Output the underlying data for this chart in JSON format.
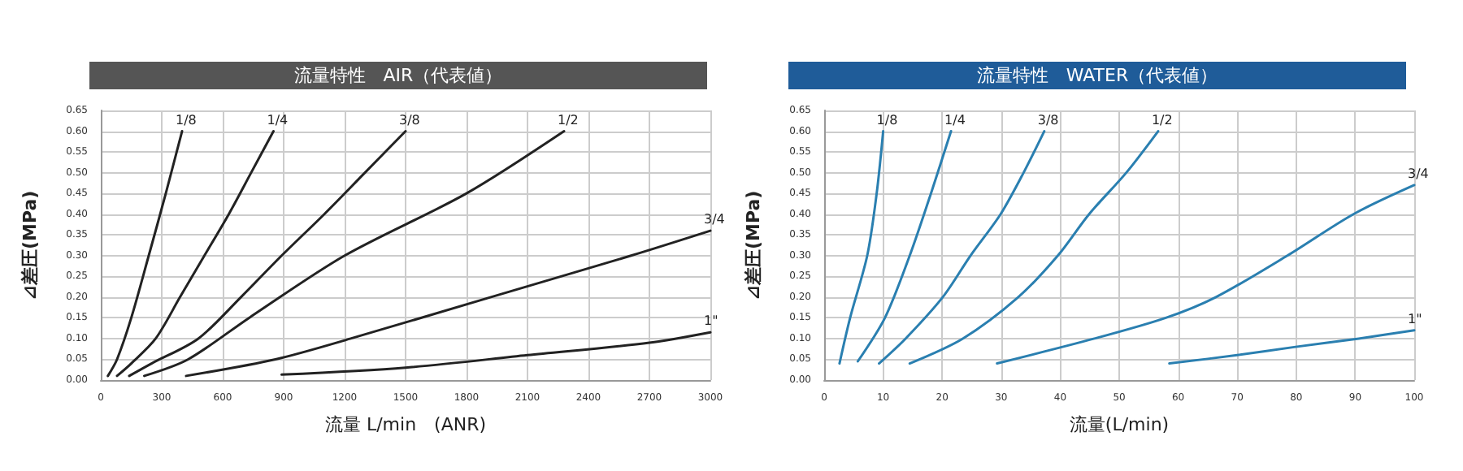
{
  "chart_data": [
    {
      "type": "line",
      "title": "流量特性　AIR（代表値）",
      "xlabel": "流量 L/min　(ANR)",
      "ylabel": "⊿差圧(MPa)",
      "xlim": [
        0,
        3000
      ],
      "xticks": [
        0,
        300,
        600,
        900,
        1200,
        1500,
        1800,
        2100,
        2400,
        2700,
        3000
      ],
      "ylim": [
        0,
        0.65
      ],
      "yticks": [
        {
          "value": 0,
          "label": "0.00"
        },
        0.05,
        {
          "value": 0.1,
          "label": "0.10"
        },
        0.15,
        {
          "value": 0.2,
          "label": "0.20"
        },
        0.25,
        {
          "value": 0.3,
          "label": "0.30"
        },
        0.35,
        {
          "value": 0.4,
          "label": "0.40"
        },
        0.45,
        {
          "value": 0.5,
          "label": "0.50"
        },
        0.55,
        {
          "value": 0.6,
          "label": "0.60"
        },
        0.65
      ],
      "grid": true,
      "legend": false,
      "marker": "none",
      "line_style": "solid",
      "series": [
        {
          "name": "1/8",
          "color": "#222222",
          "x": [
            35,
            80,
            150,
            236,
            320,
            400
          ],
          "values": [
            0.01,
            0.05,
            0.15,
            0.3,
            0.45,
            0.6
          ]
        },
        {
          "name": "1/4",
          "color": "#222222",
          "x": [
            80,
            150,
            270,
            390,
            510,
            630,
            740,
            850
          ],
          "values": [
            0.01,
            0.04,
            0.1,
            0.2,
            0.3,
            0.4,
            0.5,
            0.6
          ]
        },
        {
          "name": "3/8",
          "color": "#222222",
          "x": [
            140,
            250,
            480,
            690,
            890,
            1100,
            1300,
            1500
          ],
          "values": [
            0.01,
            0.04,
            0.1,
            0.2,
            0.3,
            0.4,
            0.5,
            0.6
          ]
        },
        {
          "name": "1/2",
          "color": "#222222",
          "x": [
            214,
            430,
            730,
            1200,
            1800,
            2280
          ],
          "values": [
            0.01,
            0.05,
            0.15,
            0.3,
            0.45,
            0.6
          ]
        },
        {
          "name": "3/4",
          "color": "#222222",
          "x": [
            420,
            860,
            1230,
            1920,
            2610,
            3000
          ],
          "values": [
            0.01,
            0.05,
            0.1,
            0.2,
            0.3,
            0.36
          ]
        },
        {
          "name": "1\"",
          "color": "#222222",
          "x": [
            890,
            1500,
            2100,
            2700,
            3000
          ],
          "values": [
            0.013,
            0.03,
            0.06,
            0.09,
            0.115
          ]
        }
      ]
    },
    {
      "type": "line",
      "title": "流量特性　WATER（代表値）",
      "xlabel": "流量(L/min)",
      "ylabel": "⊿差圧(MPa)",
      "xlim": [
        0,
        100
      ],
      "xticks": [
        0,
        10,
        20,
        30,
        40,
        50,
        60,
        70,
        80,
        90,
        100
      ],
      "ylim": [
        0,
        0.65
      ],
      "yticks": [
        {
          "value": 0,
          "label": "0.00"
        },
        0.05,
        {
          "value": 0.1,
          "label": "0.10"
        },
        0.15,
        {
          "value": 0.2,
          "label": "0.20"
        },
        0.25,
        {
          "value": 0.3,
          "label": "0.30"
        },
        0.35,
        {
          "value": 0.4,
          "label": "0.40"
        },
        0.45,
        {
          "value": 0.5,
          "label": "0.50"
        },
        0.55,
        {
          "value": 0.6,
          "label": "0.60"
        },
        0.65
      ],
      "grid": true,
      "legend": false,
      "marker": "none",
      "line_style": "solid",
      "series": [
        {
          "name": "1/8",
          "color": "#2a7fb0",
          "x": [
            2.6,
            4.4,
            7.3,
            8.9,
            10.0
          ],
          "values": [
            0.04,
            0.15,
            0.3,
            0.45,
            0.6
          ]
        },
        {
          "name": "1/4",
          "color": "#2a7fb0",
          "x": [
            5.7,
            10.3,
            14.5,
            18.1,
            21.5
          ],
          "values": [
            0.045,
            0.15,
            0.3,
            0.45,
            0.6
          ]
        },
        {
          "name": "3/8",
          "color": "#2a7fb0",
          "x": [
            9.3,
            13.8,
            20.1,
            24.8,
            29.9,
            33.8,
            37.3
          ],
          "values": [
            0.04,
            0.1,
            0.2,
            0.3,
            0.4,
            0.5,
            0.6
          ]
        },
        {
          "name": "1/2",
          "color": "#2a7fb0",
          "x": [
            14.5,
            23.5,
            32.9,
            39.6,
            44.9,
            51.2,
            56.6
          ],
          "values": [
            0.04,
            0.1,
            0.2,
            0.3,
            0.4,
            0.5,
            0.6
          ]
        },
        {
          "name": "3/4",
          "color": "#2a7fb0",
          "x": [
            29.3,
            45.8,
            57.9,
            66.4,
            78.5,
            89.7,
            100
          ],
          "values": [
            0.04,
            0.1,
            0.15,
            0.2,
            0.3,
            0.4,
            0.47
          ]
        },
        {
          "name": "1\"",
          "color": "#2a7fb0",
          "x": [
            58.5,
            70,
            79.9,
            90.6,
            100
          ],
          "values": [
            0.04,
            0.06,
            0.08,
            0.1,
            0.12
          ]
        }
      ]
    }
  ]
}
